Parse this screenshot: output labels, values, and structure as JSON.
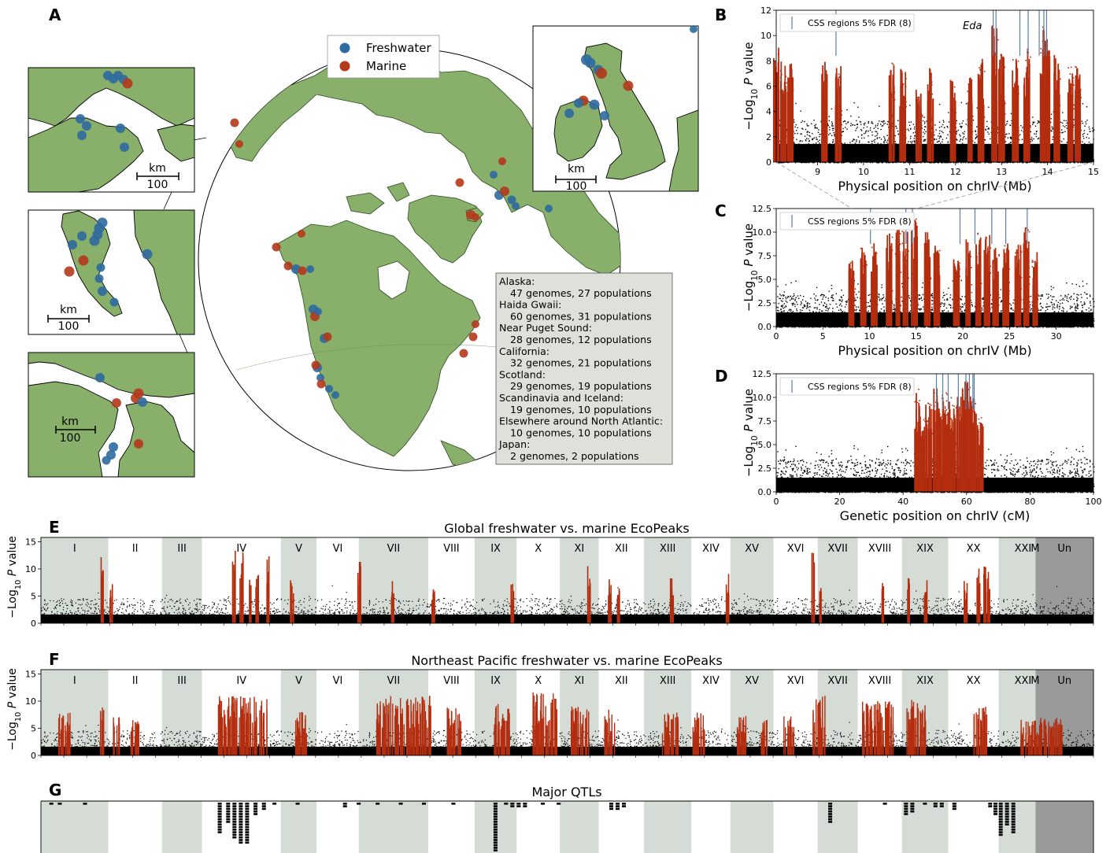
{
  "panel_letters": {
    "a": "A",
    "b": "B",
    "c": "C",
    "d": "D",
    "e": "E",
    "f": "F",
    "g": "G"
  },
  "map": {
    "legend": {
      "freshwater": "Freshwater",
      "marine": "Marine"
    },
    "colors": {
      "freshwater": "#2f6aa0",
      "marine": "#b5391b",
      "land": "#88b06a",
      "ocean": "#ffffff",
      "note_bg": "#dde1da"
    },
    "scalebar": {
      "unit": "km",
      "value": "100"
    },
    "regions_note": [
      "Alaska:",
      "47 genomes, 27 populations",
      "Haida Gwaii:",
      "60 genomes, 31 populations",
      "Near Puget Sound:",
      "28 genomes, 12 populations",
      "California:",
      "32 genomes, 21 populations",
      "Scotland:",
      "29 genomes, 19 populations",
      "Scandinavia and Iceland:",
      "19 genomes, 10 populations",
      "Elsewhere around North Atlantic:",
      "10 genomes, 10 populations",
      "Japan:",
      "2 genomes, 2 populations"
    ]
  },
  "colors": {
    "peak": "#b32d0e",
    "background_points": "#000000",
    "css_line": "#5b7fa6",
    "band_grey": "#d5dbd5",
    "band_dark": "#9a9a9a"
  },
  "chart_data": [
    {
      "id": "B",
      "type": "scatter",
      "xlabel": "Physical position on chrIV (Mb)",
      "ylabel_main": "−Log",
      "ylabel_sub": "10",
      "ylabel_rest": " P value",
      "xlim": [
        8.1,
        15
      ],
      "ylim": [
        0,
        12
      ],
      "xticks": [
        "9",
        "10",
        "11",
        "12",
        "13",
        "14",
        "15"
      ],
      "xtick_values": [
        9,
        10,
        11,
        12,
        13,
        14,
        15
      ],
      "yticks": [
        "0",
        "2",
        "4",
        "6",
        "8",
        "10",
        "12"
      ],
      "ytick_values": [
        0,
        2,
        4,
        6,
        8,
        10,
        12
      ],
      "legend": "CSS regions 5% FDR (8)",
      "annotation": "Eda",
      "peaks": [
        [
          8.1,
          9.2
        ],
        [
          8.25,
          8.0
        ],
        [
          8.4,
          7.8
        ],
        [
          9.15,
          8.0
        ],
        [
          9.45,
          7.9
        ],
        [
          10.6,
          8.0
        ],
        [
          10.85,
          7.4
        ],
        [
          11.2,
          6.0
        ],
        [
          11.45,
          7.5
        ],
        [
          11.95,
          6.5
        ],
        [
          12.3,
          6.8
        ],
        [
          12.55,
          8.2
        ],
        [
          12.85,
          11.2
        ],
        [
          13.0,
          8.6
        ],
        [
          13.3,
          8.2
        ],
        [
          13.55,
          9.0
        ],
        [
          13.9,
          10.8
        ],
        [
          14.0,
          9.8
        ],
        [
          14.2,
          8.5
        ],
        [
          14.5,
          7.6
        ],
        [
          14.65,
          7.8
        ]
      ],
      "css_lines": [
        9.4,
        12.82,
        12.88,
        13.4,
        13.58,
        13.82,
        13.92,
        13.98
      ]
    },
    {
      "id": "C",
      "type": "scatter",
      "xlabel": "Physical position on chrIV (Mb)",
      "ylabel_main": "−Log",
      "ylabel_sub": "10",
      "ylabel_rest": " P value",
      "xlim": [
        0,
        34
      ],
      "ylim": [
        0,
        12.5
      ],
      "xticks": [
        "0",
        "5",
        "10",
        "15",
        "20",
        "25",
        "30"
      ],
      "xtick_values": [
        0,
        5,
        10,
        15,
        20,
        25,
        30
      ],
      "yticks": [
        "0.0",
        "2.5",
        "5.0",
        "7.5",
        "10.0",
        "12.5"
      ],
      "ytick_values": [
        0,
        2.5,
        5,
        7.5,
        10,
        12.5
      ],
      "legend": "CSS regions 5% FDR (8)",
      "peak_range": [
        7.9,
        28.2
      ],
      "peaks": [
        [
          8.1,
          7.0
        ],
        [
          9.3,
          8.5
        ],
        [
          10.5,
          9.0
        ],
        [
          12.1,
          10.5
        ],
        [
          13.0,
          11.3
        ],
        [
          13.8,
          10.2
        ],
        [
          14.8,
          11.5
        ],
        [
          16.2,
          10.0
        ],
        [
          17.2,
          8.6
        ],
        [
          19.3,
          7.3
        ],
        [
          20.6,
          9.5
        ],
        [
          21.7,
          10.2
        ],
        [
          22.6,
          9.8
        ],
        [
          23.5,
          8.4
        ],
        [
          24.6,
          8.8
        ],
        [
          25.9,
          8.8
        ],
        [
          26.8,
          10.6
        ],
        [
          27.7,
          8.0
        ]
      ],
      "css_lines": [
        10.1,
        13.9,
        14.6,
        19.7,
        21.3,
        23.1,
        24.6,
        26.9
      ]
    },
    {
      "id": "D",
      "type": "scatter",
      "xlabel": "Genetic position on chrIV (cM)",
      "ylabel_main": "−Log",
      "ylabel_sub": "10",
      "ylabel_rest": " P value",
      "xlim": [
        0,
        100
      ],
      "ylim": [
        0,
        12.5
      ],
      "xticks": [
        "0",
        "20",
        "40",
        "60",
        "80",
        "100"
      ],
      "xtick_values": [
        0,
        20,
        40,
        60,
        80,
        100
      ],
      "yticks": [
        "0.0",
        "2.5",
        "5.0",
        "7.5",
        "10.0",
        "12.5"
      ],
      "ytick_values": [
        0,
        2.5,
        5,
        7.5,
        10,
        12.5
      ],
      "legend": "CSS regions 5% FDR (8)",
      "peak_range": [
        44,
        65.5
      ],
      "peaks": [
        [
          44.5,
          11.0
        ],
        [
          46,
          8.0
        ],
        [
          48,
          9.5
        ],
        [
          50.2,
          11.5
        ],
        [
          52.2,
          10.5
        ],
        [
          54,
          10.8
        ],
        [
          55.5,
          9.8
        ],
        [
          57.5,
          10.2
        ],
        [
          59.5,
          11.8
        ],
        [
          60.8,
          11.2
        ],
        [
          62.3,
          10.0
        ],
        [
          64.3,
          8.1
        ]
      ],
      "css_lines": [
        50.5,
        52.5,
        54.2,
        57.4,
        59.8,
        60.9,
        62.0,
        62.4
      ]
    },
    {
      "id": "E",
      "type": "scatter",
      "title": "Global freshwater vs. marine EcoPeaks",
      "ylabel_main": "−Log",
      "ylabel_sub": "10",
      "ylabel_rest": " P value",
      "ylim": [
        0,
        15.8
      ],
      "yticks": [
        "0",
        "5",
        "10",
        "15"
      ],
      "ytick_values": [
        0,
        5,
        10,
        15
      ],
      "chromosomes": [
        "I",
        "II",
        "III",
        "IV",
        "V",
        "VI",
        "VII",
        "VIII",
        "IX",
        "X",
        "XI",
        "XII",
        "XIII",
        "XIV",
        "XV",
        "XVI",
        "XVII",
        "XVIII",
        "XIX",
        "XX",
        "XXI",
        "M",
        "Un"
      ],
      "peaks": [
        [
          0.058,
          14.0
        ],
        [
          0.066,
          8.0
        ],
        [
          0.183,
          14.0
        ],
        [
          0.19,
          13.5
        ],
        [
          0.198,
          8.5
        ],
        [
          0.205,
          9.0
        ],
        [
          0.215,
          12.5
        ],
        [
          0.238,
          8.0
        ],
        [
          0.302,
          11.6
        ],
        [
          0.334,
          7.8
        ],
        [
          0.372,
          7.5
        ],
        [
          0.447,
          8.0
        ],
        [
          0.52,
          11.0
        ],
        [
          0.54,
          8.5
        ],
        [
          0.548,
          7.5
        ],
        [
          0.599,
          9.0
        ],
        [
          0.652,
          9.8
        ],
        [
          0.733,
          13.0
        ],
        [
          0.74,
          8.0
        ],
        [
          0.8,
          8.5
        ],
        [
          0.823,
          8.5
        ],
        [
          0.84,
          8.0
        ],
        [
          0.878,
          8.0
        ],
        [
          0.89,
          10.5
        ],
        [
          0.896,
          10.5
        ],
        [
          0.9,
          9.5
        ]
      ]
    },
    {
      "id": "F",
      "type": "scatter",
      "title": "Northeast Pacific freshwater vs. marine EcoPeaks",
      "ylabel_main": "−Log",
      "ylabel_sub": "10",
      "ylabel_rest": " P value",
      "ylim": [
        0,
        15.8
      ],
      "yticks": [
        "0",
        "5",
        "10",
        "15"
      ],
      "ytick_values": [
        0,
        5,
        10,
        15
      ],
      "chromosomes": [
        "I",
        "II",
        "III",
        "IV",
        "V",
        "VI",
        "VII",
        "VIII",
        "IX",
        "X",
        "XI",
        "XII",
        "XIII",
        "XIV",
        "XV",
        "XVI",
        "XVII",
        "XVIII",
        "XIX",
        "XX",
        "XXI",
        "M",
        "Un"
      ],
      "peak_blocks": [
        [
          0.016,
          0.028,
          8.0
        ],
        [
          0.056,
          0.06,
          11.0
        ],
        [
          0.068,
          0.074,
          7.5
        ],
        [
          0.085,
          0.095,
          6.5
        ],
        [
          0.168,
          0.215,
          11.0
        ],
        [
          0.24,
          0.252,
          8.0
        ],
        [
          0.318,
          0.37,
          11.0
        ],
        [
          0.385,
          0.4,
          9.0
        ],
        [
          0.43,
          0.445,
          9.5
        ],
        [
          0.467,
          0.49,
          11.8
        ],
        [
          0.503,
          0.52,
          9.5
        ],
        [
          0.535,
          0.545,
          8.5
        ],
        [
          0.59,
          0.605,
          8.0
        ],
        [
          0.618,
          0.63,
          8.0
        ],
        [
          0.66,
          0.67,
          7.5
        ],
        [
          0.683,
          0.69,
          7.0
        ],
        [
          0.705,
          0.715,
          7.5
        ],
        [
          0.733,
          0.745,
          11.0
        ],
        [
          0.78,
          0.81,
          10.0
        ],
        [
          0.822,
          0.84,
          10.5
        ],
        [
          0.885,
          0.9,
          9.0
        ],
        [
          0.93,
          0.97,
          7.0
        ]
      ]
    },
    {
      "id": "G",
      "type": "heatmap",
      "title": "Major QTLs",
      "qtl_columns": [
        [
          0.008,
          1
        ],
        [
          0.016,
          1
        ],
        [
          0.04,
          1
        ],
        [
          0.168,
          12
        ],
        [
          0.176,
          8
        ],
        [
          0.182,
          14
        ],
        [
          0.188,
          16
        ],
        [
          0.194,
          16
        ],
        [
          0.202,
          5
        ],
        [
          0.21,
          3
        ],
        [
          0.22,
          1
        ],
        [
          0.242,
          1
        ],
        [
          0.287,
          2
        ],
        [
          0.3,
          1
        ],
        [
          0.318,
          1
        ],
        [
          0.34,
          1
        ],
        [
          0.362,
          1
        ],
        [
          0.39,
          1
        ],
        [
          0.43,
          22
        ],
        [
          0.44,
          1
        ],
        [
          0.446,
          2
        ],
        [
          0.452,
          2
        ],
        [
          0.458,
          2
        ],
        [
          0.475,
          1
        ],
        [
          0.49,
          1
        ],
        [
          0.54,
          3
        ],
        [
          0.546,
          3
        ],
        [
          0.552,
          2
        ],
        [
          0.748,
          8
        ],
        [
          0.8,
          1
        ],
        [
          0.82,
          5
        ],
        [
          0.826,
          4
        ],
        [
          0.838,
          1
        ],
        [
          0.848,
          2
        ],
        [
          0.854,
          2
        ],
        [
          0.866,
          3
        ],
        [
          0.9,
          2
        ],
        [
          0.905,
          5
        ],
        [
          0.91,
          13
        ],
        [
          0.916,
          9
        ],
        [
          0.922,
          12
        ]
      ]
    }
  ]
}
